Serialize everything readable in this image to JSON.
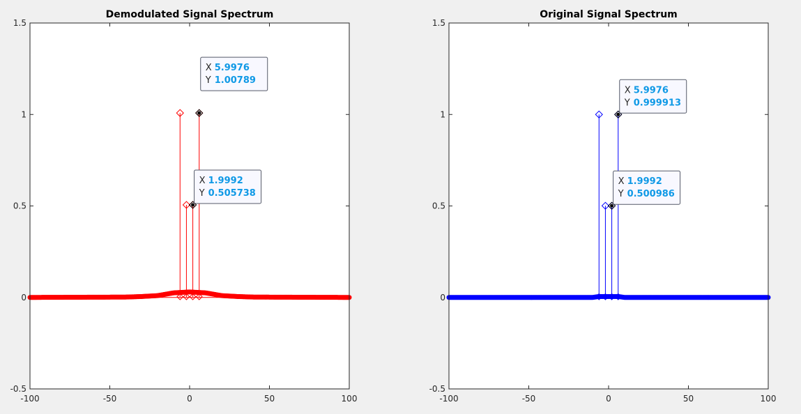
{
  "chart_data": [
    {
      "type": "stem",
      "title": "Demodulated Signal Spectrum",
      "xlim": [
        -100,
        100
      ],
      "ylim": [
        -0.5,
        1.5
      ],
      "xticks": [
        "-100",
        "-50",
        "0",
        "50",
        "100"
      ],
      "yticks": [
        "-0.5",
        "0",
        "0.5",
        "1",
        "1.5"
      ],
      "grid": false,
      "series": [
        {
          "color": "#ff0000",
          "peaks": [
            {
              "x": -6,
              "y": 1.00789
            },
            {
              "x": -2,
              "y": 0.505738
            },
            {
              "x": 1.9992,
              "y": 0.505738
            },
            {
              "x": 5.9976,
              "y": 1.00789
            }
          ],
          "floor": [
            {
              "x": -100,
              "y": 0.0
            },
            {
              "x": -40,
              "y": 0.002
            },
            {
              "x": -30,
              "y": 0.005
            },
            {
              "x": -20,
              "y": 0.01
            },
            {
              "x": -10,
              "y": 0.025
            },
            {
              "x": 0,
              "y": 0.03
            },
            {
              "x": 10,
              "y": 0.025
            },
            {
              "x": 20,
              "y": 0.01
            },
            {
              "x": 30,
              "y": 0.005
            },
            {
              "x": 40,
              "y": 0.002
            },
            {
              "x": 100,
              "y": 0.0
            }
          ]
        }
      ],
      "datatips": [
        {
          "x_key": "X",
          "x_value": "5.9976",
          "y_key": "Y",
          "y_value": "1.00789",
          "anchor_x": 5.9976,
          "anchor_y": 1.00789
        },
        {
          "x_key": "X",
          "x_value": "1.9992",
          "y_key": "Y",
          "y_value": "0.505738",
          "anchor_x": 1.9992,
          "anchor_y": 0.505738
        }
      ]
    },
    {
      "type": "stem",
      "title": "Original Signal Spectrum",
      "xlim": [
        -100,
        100
      ],
      "ylim": [
        -0.5,
        1.5
      ],
      "xticks": [
        "-100",
        "-50",
        "0",
        "50",
        "100"
      ],
      "yticks": [
        "-0.5",
        "0",
        "0.5",
        "1",
        "1.5"
      ],
      "grid": false,
      "series": [
        {
          "color": "#0000ff",
          "peaks": [
            {
              "x": -6,
              "y": 0.999913
            },
            {
              "x": -2,
              "y": 0.500986
            },
            {
              "x": 1.9992,
              "y": 0.500986
            },
            {
              "x": 5.9976,
              "y": 0.999913
            }
          ],
          "floor": [
            {
              "x": -100,
              "y": 0.0
            },
            {
              "x": -10,
              "y": 0.0
            },
            {
              "x": -6,
              "y": 0.005
            },
            {
              "x": 6,
              "y": 0.005
            },
            {
              "x": 10,
              "y": 0.0
            },
            {
              "x": 100,
              "y": 0.0
            }
          ]
        }
      ],
      "datatips": [
        {
          "x_key": "X",
          "x_value": "5.9976",
          "y_key": "Y",
          "y_value": "0.999913",
          "anchor_x": 5.9976,
          "anchor_y": 0.999913
        },
        {
          "x_key": "X",
          "x_value": "1.9992",
          "y_key": "Y",
          "y_value": "0.500986",
          "anchor_x": 1.9992,
          "anchor_y": 0.500986
        }
      ]
    }
  ]
}
